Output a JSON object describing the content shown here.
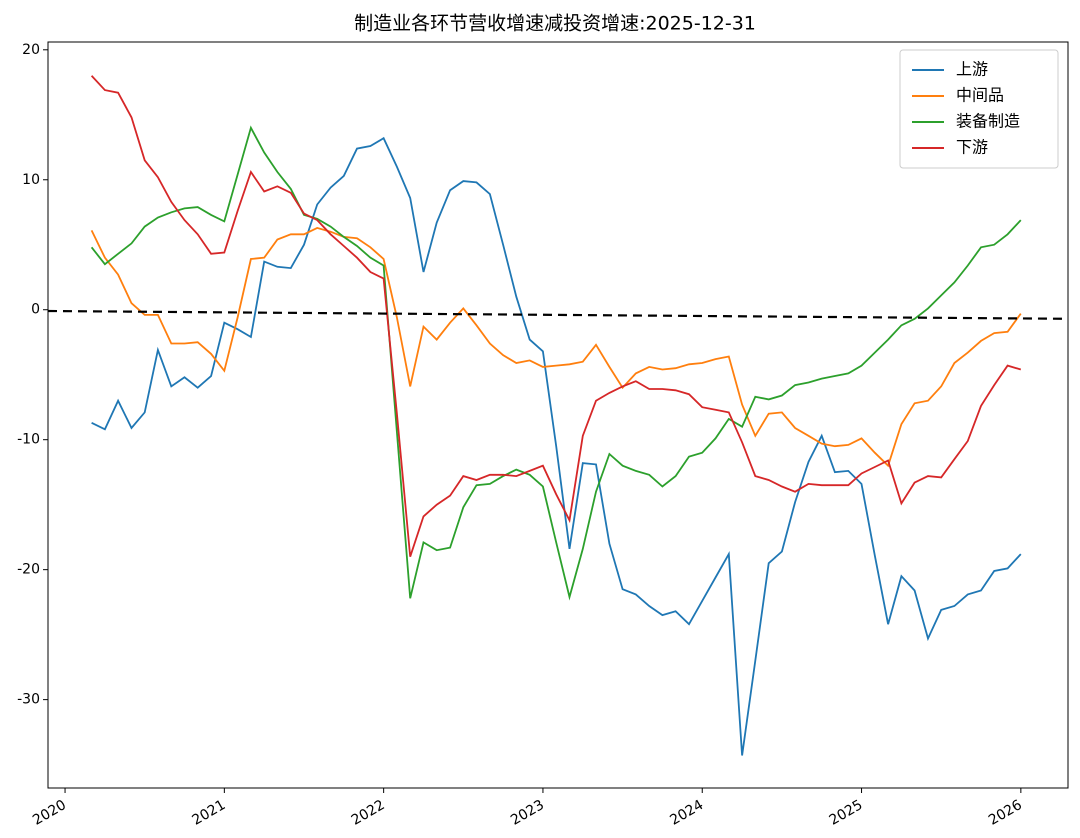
{
  "chart_data": {
    "type": "line",
    "title": "制造业各环节营收增速减投资增速:2025-12-31",
    "x": [
      2020.167,
      2020.25,
      2020.333,
      2020.417,
      2020.5,
      2020.583,
      2020.667,
      2020.75,
      2020.833,
      2020.917,
      2021,
      2021.083,
      2021.167,
      2021.25,
      2021.333,
      2021.417,
      2021.5,
      2021.583,
      2021.667,
      2021.75,
      2021.833,
      2021.917,
      2022,
      2022.083,
      2022.167,
      2022.25,
      2022.333,
      2022.417,
      2022.5,
      2022.583,
      2022.667,
      2022.75,
      2022.833,
      2022.917,
      2023,
      2023.083,
      2023.167,
      2023.25,
      2023.333,
      2023.417,
      2023.5,
      2023.583,
      2023.667,
      2023.75,
      2023.833,
      2023.917,
      2024,
      2024.083,
      2024.167,
      2024.25,
      2024.333,
      2024.417,
      2024.5,
      2024.583,
      2024.667,
      2024.75,
      2024.833,
      2024.917,
      2025,
      2025.083,
      2025.167,
      2025.25,
      2025.333,
      2025.417,
      2025.5,
      2025.583,
      2025.667,
      2025.75,
      2025.833,
      2025.917,
      2026
    ],
    "series": [
      {
        "name": "上游",
        "color": "#1f77b4",
        "values": [
          -8.7,
          -9.2,
          -7.0,
          -9.1,
          -7.9,
          -3.1,
          -5.9,
          -5.2,
          -6.0,
          -5.1,
          -1.0,
          -1.5,
          -2.1,
          3.7,
          3.3,
          3.2,
          5.0,
          8.1,
          9.4,
          10.3,
          12.4,
          12.6,
          13.2,
          11.0,
          8.6,
          2.9,
          6.7,
          9.2,
          9.9,
          9.8,
          8.9,
          5.0,
          1.0,
          -2.3,
          -3.2,
          -10.5,
          -18.4,
          -11.8,
          -11.9,
          -18.0,
          -21.5,
          -21.9,
          -22.8,
          -23.5,
          -23.2,
          -24.2,
          -22.4,
          -20.6,
          -18.8,
          -34.3,
          -27.0,
          -19.5,
          -18.6,
          -14.8,
          -11.7,
          -9.7,
          -12.5,
          -12.4,
          -13.4,
          -18.9,
          -24.2,
          -20.5,
          -21.6,
          -25.3,
          -23.1,
          -22.8,
          -21.9,
          -21.6,
          -20.1,
          -19.9,
          -18.8
        ]
      },
      {
        "name": "中间品",
        "color": "#ff7f0e",
        "values": [
          6.1,
          4.0,
          2.7,
          0.5,
          -0.4,
          -0.4,
          -2.6,
          -2.6,
          -2.5,
          -3.4,
          -4.7,
          -0.6,
          3.9,
          4.0,
          5.4,
          5.8,
          5.8,
          6.3,
          6.0,
          5.6,
          5.5,
          4.8,
          3.9,
          -0.6,
          -5.9,
          -1.3,
          -2.3,
          -1.0,
          0.1,
          -1.2,
          -2.6,
          -3.5,
          -4.1,
          -3.9,
          -4.4,
          -4.3,
          -4.2,
          -4.0,
          -2.7,
          -4.4,
          -6.0,
          -4.9,
          -4.4,
          -4.6,
          -4.5,
          -4.2,
          -4.1,
          -3.8,
          -3.6,
          -7.3,
          -9.7,
          -8.0,
          -7.9,
          -9.1,
          -9.7,
          -10.3,
          -10.5,
          -10.4,
          -9.9,
          -11.0,
          -12.0,
          -8.8,
          -7.2,
          -7.0,
          -5.9,
          -4.1,
          -3.3,
          -2.4,
          -1.8,
          -1.7,
          -0.3
        ]
      },
      {
        "name": "装备制造",
        "color": "#2ca02c",
        "values": [
          4.8,
          3.5,
          4.3,
          5.1,
          6.4,
          7.1,
          7.5,
          7.8,
          7.9,
          7.3,
          6.8,
          10.4,
          14.0,
          12.1,
          10.6,
          9.3,
          7.3,
          7.0,
          6.4,
          5.6,
          4.9,
          4.0,
          3.4,
          -9.4,
          -22.2,
          -17.9,
          -18.5,
          -18.3,
          -15.2,
          -13.5,
          -13.4,
          -12.8,
          -12.3,
          -12.7,
          -13.6,
          -17.9,
          -22.1,
          -18.4,
          -14.0,
          -11.1,
          -12.0,
          -12.4,
          -12.7,
          -13.6,
          -12.8,
          -11.3,
          -11.0,
          -9.9,
          -8.4,
          -9.0,
          -6.7,
          -6.9,
          -6.6,
          -5.8,
          -5.6,
          -5.3,
          -5.1,
          -4.9,
          -4.3,
          -3.3,
          -2.3,
          -1.2,
          -0.7,
          0.1,
          1.1,
          2.1,
          3.4,
          4.8,
          5.0,
          5.8,
          6.9
        ]
      },
      {
        "name": "下游",
        "color": "#d62728",
        "values": [
          18.0,
          16.9,
          16.7,
          14.8,
          11.5,
          10.2,
          8.3,
          6.9,
          5.8,
          4.3,
          4.4,
          7.6,
          10.6,
          9.1,
          9.5,
          9.0,
          7.4,
          6.9,
          5.8,
          4.9,
          4.0,
          2.9,
          2.4,
          -8.0,
          -19.0,
          -15.9,
          -15.0,
          -14.3,
          -12.8,
          -13.1,
          -12.7,
          -12.7,
          -12.8,
          -12.4,
          -12.0,
          -14.2,
          -16.2,
          -9.7,
          -7.0,
          -6.4,
          -5.9,
          -5.5,
          -6.1,
          -6.1,
          -6.2,
          -6.5,
          -7.5,
          -7.7,
          -7.9,
          -10.2,
          -12.8,
          -13.1,
          -13.6,
          -14.0,
          -13.4,
          -13.5,
          -13.5,
          -13.5,
          -12.6,
          -12.1,
          -11.6,
          -14.9,
          -13.3,
          -12.8,
          -12.9,
          -11.5,
          -10.1,
          -7.4,
          -5.8,
          -4.3,
          -4.6
        ]
      }
    ],
    "trend_line": {
      "x": [
        2019.893,
        2026.296
      ],
      "values": [
        -0.1,
        -0.7
      ],
      "color": "#000000"
    },
    "xlim": [
      2019.893,
      2026.296
    ],
    "xticks": [
      2020,
      2021,
      2022,
      2023,
      2024,
      2025,
      2026
    ],
    "ylim": [
      -36.8,
      20.6
    ],
    "yticks": [
      20,
      10,
      0,
      -10,
      -20,
      -30
    ],
    "legend": "upper right"
  }
}
